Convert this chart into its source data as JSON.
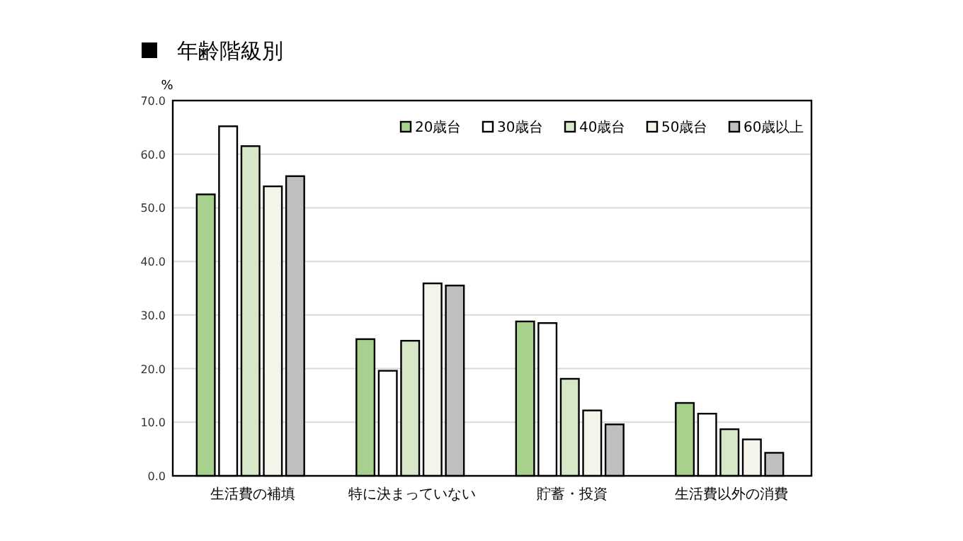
{
  "chart_data": {
    "type": "bar",
    "title": "年齢階級別",
    "ylabel": "%",
    "categories": [
      "生活費の補填",
      "特に決まっていない",
      "貯蓄・投資",
      "生活費以外の消費"
    ],
    "series": [
      {
        "name": "20歳台",
        "color": "#a9d18e",
        "values": [
          52.5,
          25.5,
          28.8,
          13.6
        ]
      },
      {
        "name": "30歳台",
        "color": "#ffffff",
        "values": [
          65.2,
          19.6,
          28.5,
          11.6
        ]
      },
      {
        "name": "40歳台",
        "color": "#d6e8c8",
        "values": [
          61.5,
          25.2,
          18.1,
          8.7
        ]
      },
      {
        "name": "50歳台",
        "color": "#f4f4ea",
        "values": [
          54.0,
          35.9,
          12.2,
          6.8
        ]
      },
      {
        "name": "60歳以上",
        "color": "#bfbfbf",
        "values": [
          55.9,
          35.5,
          9.6,
          4.3
        ]
      }
    ],
    "ylim": [
      0,
      70
    ],
    "yticks": [
      {
        "value": 0,
        "label": "0.0"
      },
      {
        "value": 10,
        "label": "10.0"
      },
      {
        "value": 20,
        "label": "20.0"
      },
      {
        "value": 30,
        "label": "30.0"
      },
      {
        "value": 40,
        "label": "40.0"
      },
      {
        "value": 50,
        "label": "50.0"
      },
      {
        "value": 60,
        "label": "60.0"
      },
      {
        "value": 70,
        "label": "70.0"
      }
    ],
    "grid": "y",
    "legend": "top right"
  }
}
